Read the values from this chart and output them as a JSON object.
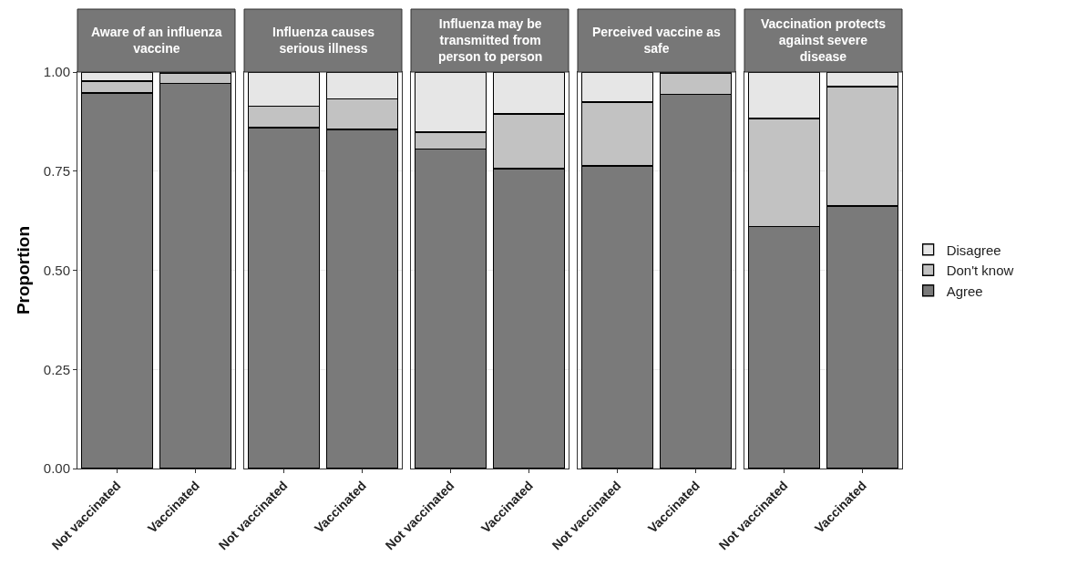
{
  "chart_data": [
    {
      "type": "bar",
      "stacked": true,
      "title": "Aware of an influenza vaccine",
      "ylabel": "Proportion",
      "categories": [
        "Not vaccinated",
        "Vaccinated"
      ],
      "ylim": [
        0,
        1
      ],
      "yticks": [
        {
          "value": 0,
          "label": "0.00"
        },
        {
          "value": 0.25,
          "label": "0.25"
        },
        {
          "value": 0.5,
          "label": "0.50"
        },
        {
          "value": 0.75,
          "label": "0.75"
        },
        {
          "value": 1,
          "label": "1.00"
        }
      ],
      "grid": "y",
      "series": [
        {
          "color": "#7a7a7a",
          "values": [
            0.947,
            0.972
          ]
        },
        {
          "color": "#c2c2c2",
          "values": [
            0.03,
            0.026
          ]
        },
        {
          "color": "#e6e6e6",
          "values": [
            0.023,
            0.002
          ]
        }
      ]
    },
    {
      "type": "bar",
      "stacked": true,
      "title": "Influenza causes serious illness",
      "categories": [
        "Not vaccinated",
        "Vaccinated"
      ],
      "ylim": [
        0,
        1
      ],
      "yticks": [
        0,
        0.25,
        0.5,
        0.75,
        1
      ],
      "tick_labels": "x",
      "grid": "y",
      "series": [
        {
          "color": "#7a7a7a",
          "values": [
            0.86,
            0.855
          ]
        },
        {
          "color": "#c2c2c2",
          "values": [
            0.053,
            0.078
          ]
        },
        {
          "color": "#e6e6e6",
          "values": [
            0.087,
            0.067
          ]
        }
      ]
    },
    {
      "type": "bar",
      "stacked": true,
      "title": "Influenza may be transmitted from person to person",
      "categories": [
        "Not vaccinated",
        "Vaccinated"
      ],
      "ylim": [
        0,
        1
      ],
      "yticks": [
        0,
        0.25,
        0.5,
        0.75,
        1
      ],
      "tick_labels": "x",
      "grid": "y",
      "series": [
        {
          "color": "#7a7a7a",
          "values": [
            0.805,
            0.756
          ]
        },
        {
          "color": "#c2c2c2",
          "values": [
            0.043,
            0.138
          ]
        },
        {
          "color": "#e6e6e6",
          "values": [
            0.152,
            0.106
          ]
        }
      ]
    },
    {
      "type": "bar",
      "stacked": true,
      "title": "Perceived vaccine as safe",
      "categories": [
        "Not vaccinated",
        "Vaccinated"
      ],
      "ylim": [
        0,
        1
      ],
      "yticks": [
        0,
        0.25,
        0.5,
        0.75,
        1
      ],
      "tick_labels": "x",
      "grid": "y",
      "series": [
        {
          "color": "#7a7a7a",
          "values": [
            0.763,
            0.944
          ]
        },
        {
          "color": "#c2c2c2",
          "values": [
            0.161,
            0.054
          ]
        },
        {
          "color": "#e6e6e6",
          "values": [
            0.076,
            0.002
          ]
        }
      ]
    },
    {
      "type": "bar",
      "stacked": true,
      "title": "Vaccination protects against severe disease",
      "categories": [
        "Not vaccinated",
        "Vaccinated"
      ],
      "ylim": [
        0,
        1
      ],
      "yticks": [
        0,
        0.25,
        0.5,
        0.75,
        1
      ],
      "tick_labels": "x",
      "grid": "y",
      "legend": "right",
      "series": [
        {
          "name": "Agree",
          "color": "#7a7a7a",
          "values": [
            0.611,
            0.662
          ]
        },
        {
          "name": "Don't know",
          "color": "#c2c2c2",
          "values": [
            0.272,
            0.301
          ]
        },
        {
          "name": "Disagree",
          "color": "#e6e6e6",
          "values": [
            0.117,
            0.037
          ]
        }
      ]
    }
  ]
}
